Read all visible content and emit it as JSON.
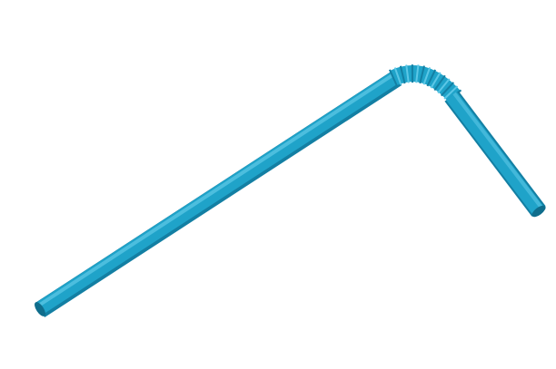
{
  "scene": {
    "background_color": "#ffffff",
    "subject": "bendy-drinking-straw",
    "straw": {
      "body_color": "#1fa3c9",
      "highlight_color": "#5cc7e6",
      "shadow_color": "#137fa3",
      "rim_color": "#0f6d8c"
    }
  }
}
